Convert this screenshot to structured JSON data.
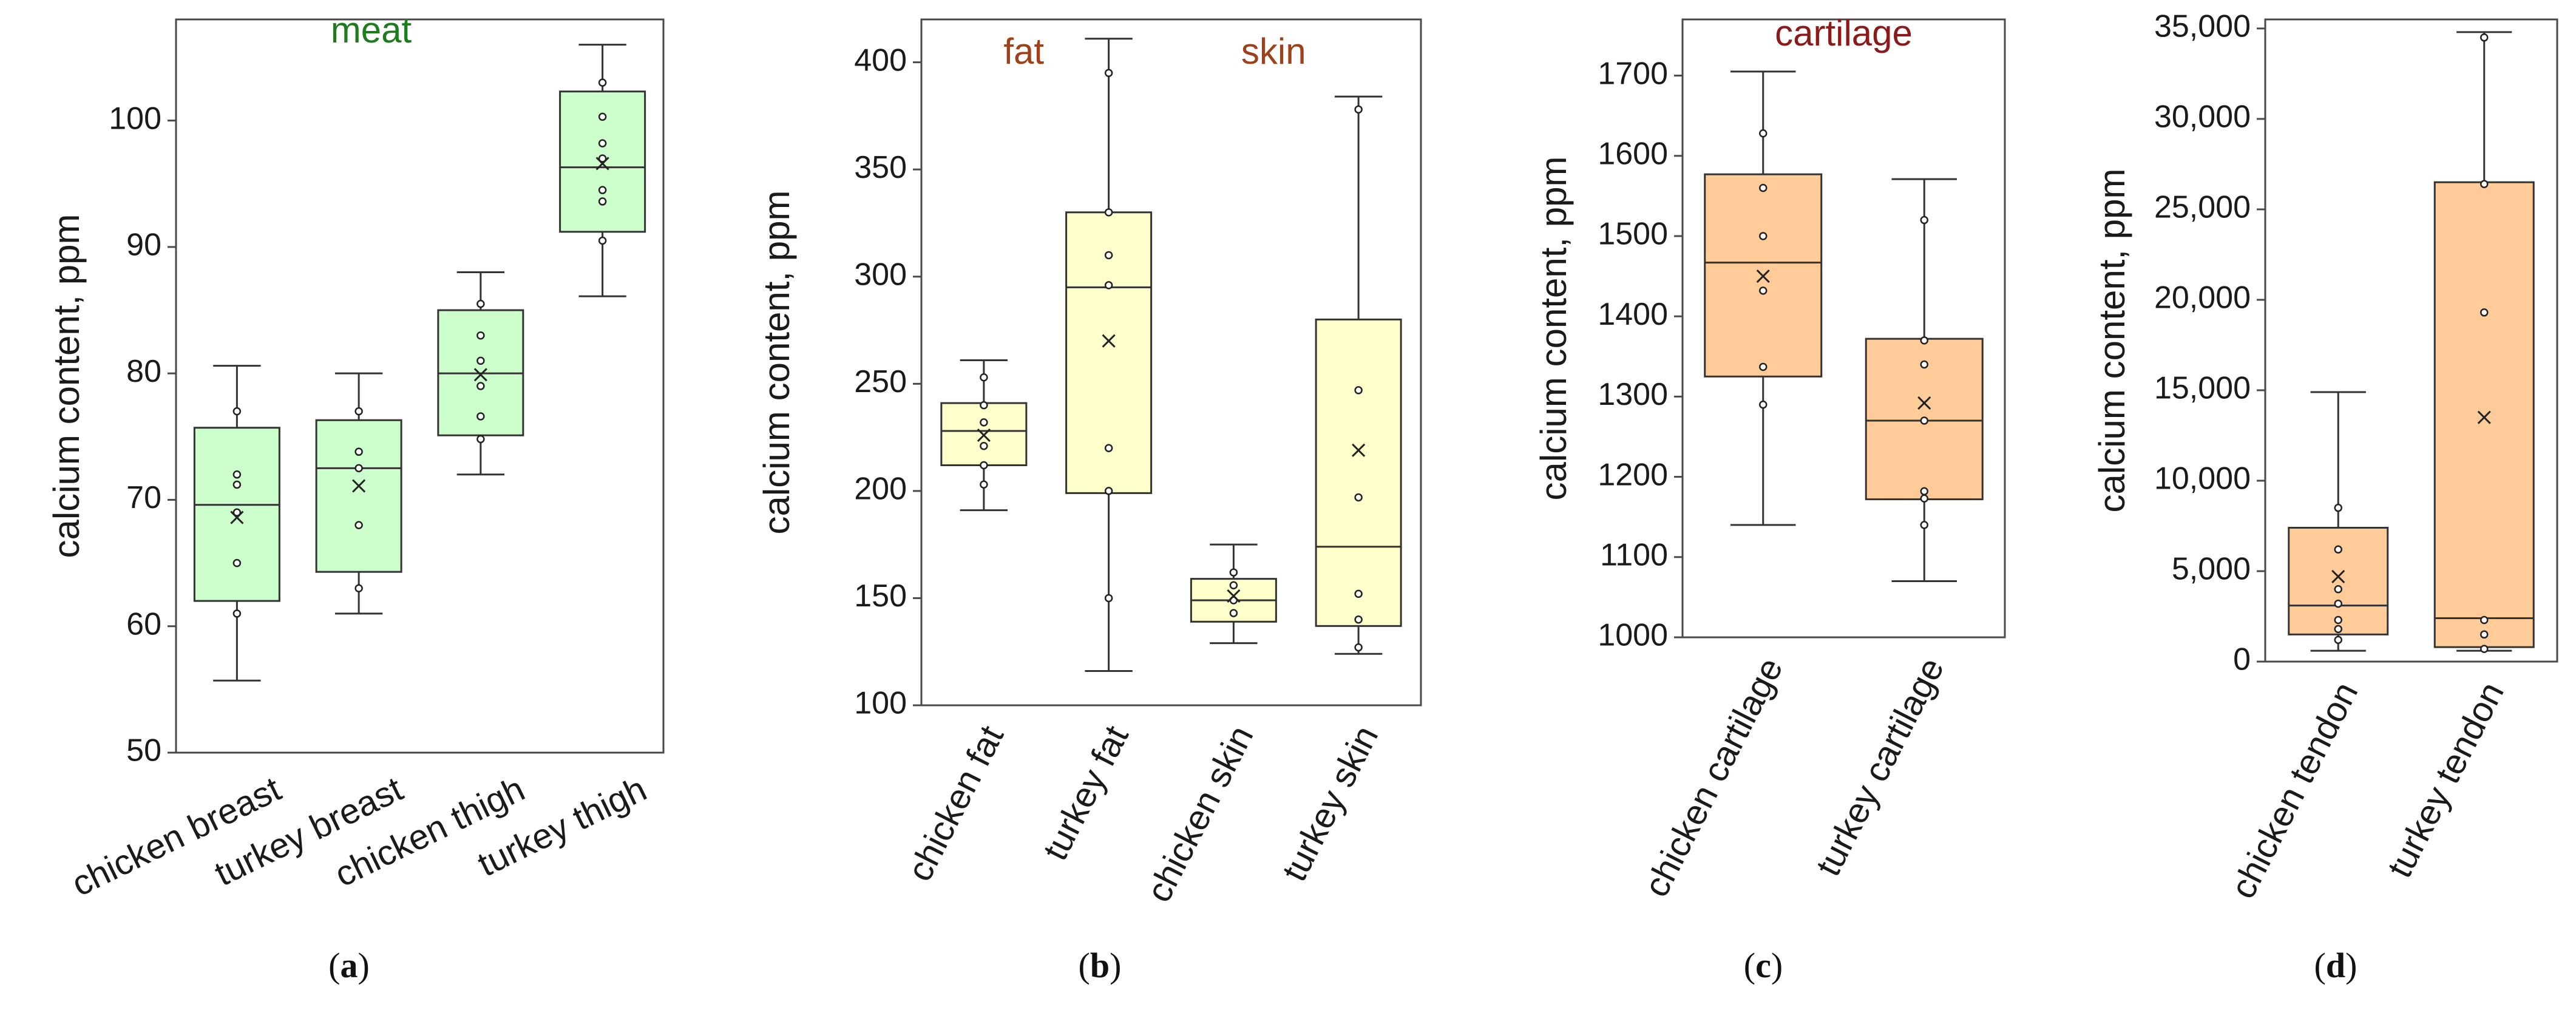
{
  "chart_data": [
    {
      "type": "boxplot",
      "panel_label": "a",
      "group_label": "meat",
      "group_label_color": "#1e7b1e",
      "box_fill": "#ccffcc",
      "ylabel": "calcium content, ppm",
      "ylim": [
        50,
        108
      ],
      "yticks": [
        50,
        60,
        70,
        80,
        90,
        100
      ],
      "ytick_labels": [
        "50",
        "60",
        "70",
        "80",
        "90",
        "100"
      ],
      "categories": [
        "chicken breast",
        "turkey breast",
        "chicken thigh",
        "turkey thigh"
      ],
      "boxes": [
        {
          "min": 55.7,
          "q1": 62.0,
          "median": 69.6,
          "q3": 75.7,
          "max": 80.6,
          "mean": 68.6,
          "points": [
            61.0,
            65.0,
            69.0,
            71.2,
            72.0,
            77.0
          ]
        },
        {
          "min": 61.0,
          "q1": 64.3,
          "median": 72.5,
          "q3": 76.3,
          "max": 80.0,
          "mean": 71.1,
          "points": [
            63.0,
            68.0,
            72.5,
            73.8,
            77.0
          ]
        },
        {
          "min": 72.0,
          "q1": 75.1,
          "median": 80.0,
          "q3": 85.0,
          "max": 88.0,
          "mean": 79.9,
          "points": [
            74.8,
            76.6,
            79.0,
            81.0,
            83.0,
            85.5
          ]
        },
        {
          "min": 86.1,
          "q1": 91.2,
          "median": 96.3,
          "q3": 102.3,
          "max": 106.0,
          "mean": 96.6,
          "points": [
            90.5,
            93.6,
            94.5,
            97.0,
            98.2,
            100.3,
            103.0
          ]
        }
      ]
    },
    {
      "type": "boxplot",
      "panel_label": "b",
      "group_labels": [
        {
          "text": "fat",
          "color": "#a0401a",
          "at": 0.5
        },
        {
          "text": "skin",
          "color": "#a0401a",
          "at": 2.5
        }
      ],
      "box_fill": "#ffffcc",
      "ylabel": "calcium content, ppm",
      "ylim": [
        100,
        420
      ],
      "yticks": [
        100,
        150,
        200,
        250,
        300,
        350,
        400
      ],
      "ytick_labels": [
        "100",
        "150",
        "200",
        "250",
        "300",
        "350",
        "400"
      ],
      "categories": [
        "chicken fat",
        "turkey fat",
        "chicken skin",
        "turkey skin"
      ],
      "boxes": [
        {
          "min": 191,
          "q1": 212,
          "median": 228,
          "q3": 241,
          "max": 261,
          "mean": 226,
          "points": [
            203,
            212,
            221,
            232,
            240,
            253
          ]
        },
        {
          "min": 116,
          "q1": 199,
          "median": 295,
          "q3": 330,
          "max": 411,
          "mean": 270,
          "points": [
            150,
            200,
            220,
            296,
            310,
            330,
            395
          ]
        },
        {
          "min": 129,
          "q1": 139,
          "median": 149,
          "q3": 159,
          "max": 175,
          "mean": 151,
          "points": [
            143,
            149,
            156,
            162
          ]
        },
        {
          "min": 124,
          "q1": 137,
          "median": 174,
          "q3": 280,
          "max": 384,
          "mean": 219,
          "points": [
            127,
            140,
            152,
            197,
            247,
            378
          ]
        }
      ]
    },
    {
      "type": "boxplot",
      "panel_label": "c",
      "group_label": "cartilage",
      "group_label_color": "#8b1a1a",
      "box_fill": "#ffcc99",
      "ylabel": "calcium content, ppm",
      "ylim": [
        1000,
        1770
      ],
      "yticks": [
        1000,
        1100,
        1200,
        1300,
        1400,
        1500,
        1600,
        1700
      ],
      "ytick_labels": [
        "1000",
        "1100",
        "1200",
        "1300",
        "1400",
        "1500",
        "1600",
        "1700"
      ],
      "categories": [
        "chicken cartilage",
        "turkey cartilage"
      ],
      "boxes": [
        {
          "min": 1140,
          "q1": 1325,
          "median": 1467,
          "q3": 1577,
          "max": 1705,
          "mean": 1450,
          "points": [
            1290,
            1337,
            1432,
            1500,
            1560,
            1628
          ]
        },
        {
          "min": 1070,
          "q1": 1172,
          "median": 1270,
          "q3": 1372,
          "max": 1571,
          "mean": 1292,
          "points": [
            1140,
            1173,
            1182,
            1270,
            1340,
            1370,
            1520
          ]
        }
      ]
    },
    {
      "type": "boxplot",
      "panel_label": "d",
      "box_fill": "#ffcc99",
      "ylabel": "calcium content, ppm",
      "ylim": [
        0,
        35500
      ],
      "yticks": [
        0,
        5000,
        10000,
        15000,
        20000,
        25000,
        30000,
        35000
      ],
      "ytick_labels": [
        "0",
        "5,000",
        "10,000",
        "15,000",
        "20,000",
        "25,000",
        "30,000",
        "35,000"
      ],
      "categories": [
        "chicken tendon",
        "turkey tendon"
      ],
      "boxes": [
        {
          "min": 600,
          "q1": 1500,
          "median": 3100,
          "q3": 7400,
          "max": 14900,
          "mean": 4700,
          "points": [
            1200,
            1800,
            2300,
            3200,
            4000,
            6200,
            8500
          ]
        },
        {
          "min": 600,
          "q1": 800,
          "median": 2400,
          "q3": 26500,
          "max": 34800,
          "mean": 13500,
          "points": [
            700,
            1500,
            2300,
            19300,
            26400,
            34500
          ]
        }
      ]
    }
  ]
}
